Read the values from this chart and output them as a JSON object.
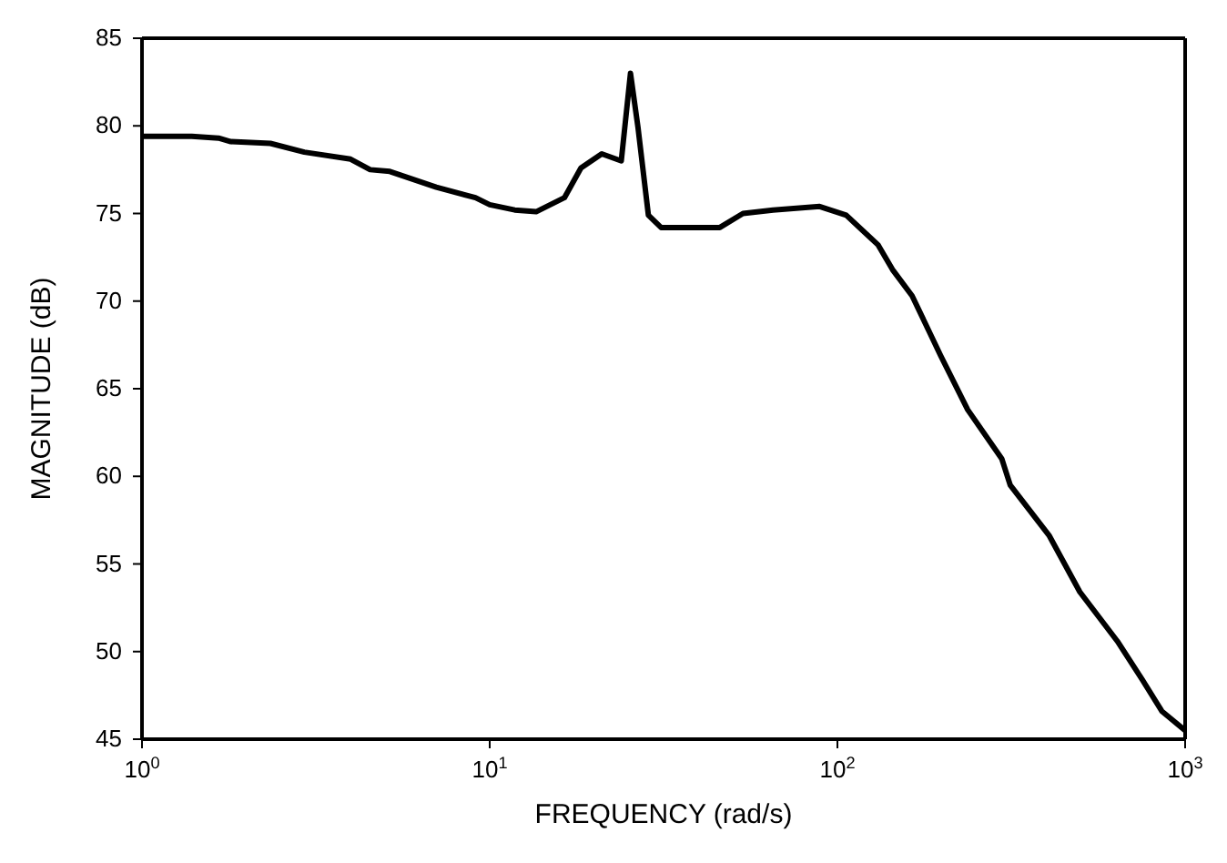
{
  "chart_data": {
    "type": "line",
    "xlabel": "FREQUENCY (rad/s)",
    "ylabel": "MAGNITUDE (dB)",
    "log": "x",
    "xlim": [
      1,
      1000
    ],
    "xticks": [
      {
        "value": 1,
        "label": "10$^{0}$"
      },
      {
        "value": 10,
        "label": "10$^{1}$"
      },
      {
        "value": 100,
        "label": "10$^{2}$"
      },
      {
        "value": 1000,
        "label": "10$^{3}$"
      }
    ],
    "ylim": [
      45,
      85
    ],
    "yticks": [
      45,
      50,
      55,
      60,
      65,
      70,
      75,
      80,
      85
    ],
    "marker": "none",
    "line_style": "solid",
    "series": [
      {
        "color": "#000000",
        "x": [
          1,
          1.39,
          1.66,
          1.8,
          2.34,
          2.93,
          3.98,
          4.53,
          5.16,
          7.02,
          9.1,
          10,
          11.8,
          13.6,
          16.4,
          18.3,
          21,
          23.9,
          25.4,
          26.7,
          28.6,
          31.1,
          45.9,
          53.5,
          65.3,
          88.9,
          106,
          131,
          144,
          164,
          198,
          237,
          297,
          314,
          407,
          498,
          638,
          753,
          857,
          1000
        ],
        "values": [
          79.4,
          79.4,
          79.3,
          79.1,
          79,
          78.5,
          78.1,
          77.5,
          77.4,
          76.5,
          75.9,
          75.5,
          75.2,
          75.1,
          75.9,
          77.6,
          78.4,
          78,
          83,
          79.9,
          74.9,
          74.2,
          74.2,
          75,
          75.2,
          75.4,
          74.9,
          73.2,
          71.8,
          70.3,
          66.9,
          63.8,
          61,
          59.5,
          56.6,
          53.4,
          50.6,
          48.4,
          46.6,
          45.5
        ]
      }
    ]
  }
}
